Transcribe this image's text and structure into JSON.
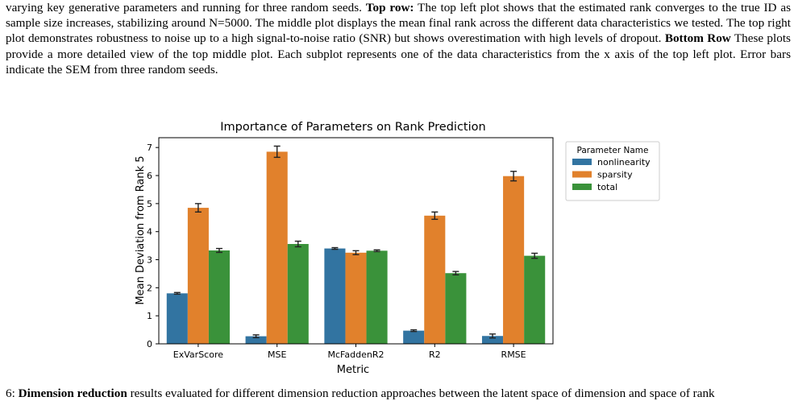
{
  "caption": {
    "line_parts": [
      {
        "text": "varying key generative parameters and running for three random seeds. ",
        "bold": false
      },
      {
        "text": "Top row:",
        "bold": true
      },
      {
        "text": " The top left plot shows that the estimated rank converges to the true ID as sample size increases, stabilizing around N=5000. The middle plot displays the mean final rank across the different data characteristics we tested. The top right plot demonstrates robustness to noise up to a high signal-to-noise ratio (SNR) but shows overestimation with high levels of dropout. ",
        "bold": false
      },
      {
        "text": "Bottom Row",
        "bold": true
      },
      {
        "text": " These plots provide a more detailed view of the top middle plot. Each subplot represents one of the data characteristics from the x axis of the top left plot. Error bars indicate the SEM from three random seeds.",
        "bold": false
      }
    ]
  },
  "bottom_caption": {
    "line_parts": [
      {
        "text": "6: ",
        "bold": false
      },
      {
        "text": "Dimension reduction",
        "bold": true
      },
      {
        "text": " results evaluated for different dimension reduction approaches between the latent space of dimension and space of rank",
        "bold": false
      }
    ]
  },
  "chart_data": {
    "type": "bar",
    "title": "Importance of Parameters on Rank Prediction",
    "xlabel": "Metric",
    "ylabel": "Mean Deviation from Rank 5",
    "ylim": [
      0,
      7.35
    ],
    "yticks": [
      0,
      1,
      2,
      3,
      4,
      5,
      6,
      7
    ],
    "categories": [
      "ExVarScore",
      "MSE",
      "McFaddenR2",
      "R2",
      "RMSE"
    ],
    "legend": {
      "title": "Parameter Name",
      "placement": "outside-right"
    },
    "series": [
      {
        "name": "nonlinearity",
        "color": "#3274a1",
        "values": [
          1.8,
          0.27,
          3.4,
          0.47,
          0.28
        ],
        "errors": [
          0.03,
          0.05,
          0.03,
          0.03,
          0.07
        ]
      },
      {
        "name": "sparsity",
        "color": "#e1812c",
        "values": [
          4.85,
          6.85,
          3.25,
          4.57,
          5.98
        ],
        "errors": [
          0.15,
          0.2,
          0.07,
          0.13,
          0.17
        ]
      },
      {
        "name": "total",
        "color": "#3a923a",
        "values": [
          3.33,
          3.56,
          3.32,
          2.52,
          3.14
        ],
        "errors": [
          0.07,
          0.1,
          0.03,
          0.06,
          0.09
        ]
      }
    ]
  }
}
